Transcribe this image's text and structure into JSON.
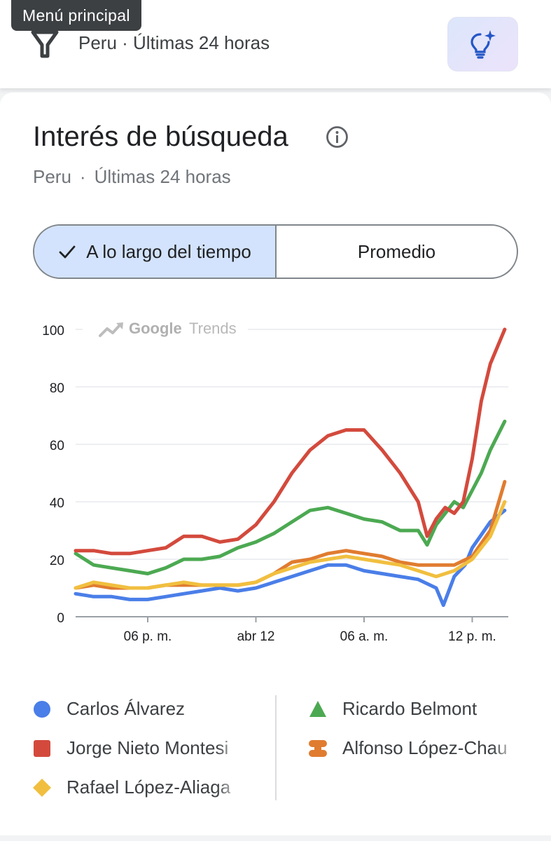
{
  "topbar": {
    "tooltip": "Menú principal",
    "filter_text": "Peru · Últimas 24 horas",
    "filter_icon": "filter-icon",
    "idea_icon": "lightbulb-sparkle-icon"
  },
  "card": {
    "title": "Interés de búsqueda",
    "info_icon": "info-icon",
    "subtitle_region": "Peru",
    "subtitle_sep": "·",
    "subtitle_period": "Últimas 24 horas"
  },
  "toggle": {
    "selected_label": "A lo largo del tiempo",
    "other_label": "Promedio"
  },
  "chart_data": {
    "type": "line",
    "watermark": {
      "brand": "Google",
      "product": "Trends"
    },
    "x_range": [
      0,
      24
    ],
    "x_ticks": [
      {
        "label": "06 p. m.",
        "x": 4
      },
      {
        "label": "abr 12",
        "x": 10
      },
      {
        "label": "06 a. m.",
        "x": 16
      },
      {
        "label": "12 p. m.",
        "x": 22
      }
    ],
    "ylim": [
      0,
      100
    ],
    "y_ticks": [
      0,
      20,
      40,
      60,
      80,
      100
    ],
    "grid": true,
    "legend_position": "bottom",
    "series": [
      {
        "name": "Carlos Álvarez",
        "color": "#4a7ee8",
        "symbol": "circle",
        "points": [
          [
            0,
            8
          ],
          [
            1,
            7
          ],
          [
            2,
            7
          ],
          [
            3,
            6
          ],
          [
            4,
            6
          ],
          [
            5,
            7
          ],
          [
            6,
            8
          ],
          [
            7,
            9
          ],
          [
            8,
            10
          ],
          [
            9,
            9
          ],
          [
            10,
            10
          ],
          [
            11,
            12
          ],
          [
            12,
            14
          ],
          [
            13,
            16
          ],
          [
            14,
            18
          ],
          [
            15,
            18
          ],
          [
            16,
            16
          ],
          [
            17,
            15
          ],
          [
            18,
            14
          ],
          [
            19,
            13
          ],
          [
            20,
            10
          ],
          [
            20.4,
            4
          ],
          [
            21,
            14
          ],
          [
            21.6,
            18
          ],
          [
            22,
            24
          ],
          [
            23,
            33
          ],
          [
            23.8,
            37
          ]
        ]
      },
      {
        "name": "Ricardo Belmont",
        "color": "#4ca952",
        "symbol": "triangle",
        "points": [
          [
            0,
            22
          ],
          [
            1,
            18
          ],
          [
            2,
            17
          ],
          [
            3,
            16
          ],
          [
            4,
            15
          ],
          [
            5,
            17
          ],
          [
            6,
            20
          ],
          [
            7,
            20
          ],
          [
            8,
            21
          ],
          [
            9,
            24
          ],
          [
            10,
            26
          ],
          [
            11,
            29
          ],
          [
            12,
            33
          ],
          [
            13,
            37
          ],
          [
            14,
            38
          ],
          [
            15,
            36
          ],
          [
            16,
            34
          ],
          [
            17,
            33
          ],
          [
            18,
            30
          ],
          [
            19,
            30
          ],
          [
            19.5,
            25
          ],
          [
            20,
            32
          ],
          [
            20.5,
            36
          ],
          [
            21,
            40
          ],
          [
            21.5,
            38
          ],
          [
            22,
            44
          ],
          [
            22.5,
            50
          ],
          [
            23,
            58
          ],
          [
            23.8,
            68
          ]
        ]
      },
      {
        "name": "Jorge Nieto Montesi",
        "color": "#d34a3d",
        "symbol": "square",
        "points": [
          [
            0,
            23
          ],
          [
            1,
            23
          ],
          [
            2,
            22
          ],
          [
            3,
            22
          ],
          [
            4,
            23
          ],
          [
            5,
            24
          ],
          [
            6,
            28
          ],
          [
            7,
            28
          ],
          [
            8,
            26
          ],
          [
            9,
            27
          ],
          [
            10,
            32
          ],
          [
            11,
            40
          ],
          [
            12,
            50
          ],
          [
            13,
            58
          ],
          [
            14,
            63
          ],
          [
            15,
            65
          ],
          [
            16,
            65
          ],
          [
            17,
            58
          ],
          [
            18,
            50
          ],
          [
            19,
            40
          ],
          [
            19.5,
            28
          ],
          [
            20,
            34
          ],
          [
            20.5,
            38
          ],
          [
            21,
            36
          ],
          [
            21.5,
            40
          ],
          [
            22,
            55
          ],
          [
            22.5,
            75
          ],
          [
            23,
            88
          ],
          [
            23.8,
            100
          ]
        ]
      },
      {
        "name": "Alfonso López-Chau",
        "color": "#e07c30",
        "symbol": "hourglass",
        "points": [
          [
            0,
            10
          ],
          [
            1,
            11
          ],
          [
            2,
            10
          ],
          [
            3,
            10
          ],
          [
            4,
            10
          ],
          [
            5,
            11
          ],
          [
            6,
            11
          ],
          [
            7,
            11
          ],
          [
            8,
            11
          ],
          [
            9,
            11
          ],
          [
            10,
            12
          ],
          [
            11,
            15
          ],
          [
            12,
            19
          ],
          [
            13,
            20
          ],
          [
            14,
            22
          ],
          [
            15,
            23
          ],
          [
            16,
            22
          ],
          [
            17,
            21
          ],
          [
            18,
            19
          ],
          [
            19,
            18
          ],
          [
            20,
            18
          ],
          [
            21,
            18
          ],
          [
            22,
            21
          ],
          [
            23,
            30
          ],
          [
            23.8,
            47
          ]
        ]
      },
      {
        "name": "Rafael López-Aliaga",
        "color": "#f1bf3f",
        "symbol": "diamond",
        "points": [
          [
            0,
            10
          ],
          [
            1,
            12
          ],
          [
            2,
            11
          ],
          [
            3,
            10
          ],
          [
            4,
            10
          ],
          [
            5,
            11
          ],
          [
            6,
            12
          ],
          [
            7,
            11
          ],
          [
            8,
            11
          ],
          [
            9,
            11
          ],
          [
            10,
            12
          ],
          [
            11,
            15
          ],
          [
            12,
            17
          ],
          [
            13,
            19
          ],
          [
            14,
            20
          ],
          [
            15,
            21
          ],
          [
            16,
            20
          ],
          [
            17,
            19
          ],
          [
            18,
            18
          ],
          [
            19,
            16
          ],
          [
            20,
            14
          ],
          [
            21,
            16
          ],
          [
            22,
            20
          ],
          [
            23,
            28
          ],
          [
            23.8,
            40
          ]
        ]
      }
    ]
  },
  "legend": {
    "left": [
      0,
      2,
      4
    ],
    "right": [
      1,
      3
    ]
  }
}
